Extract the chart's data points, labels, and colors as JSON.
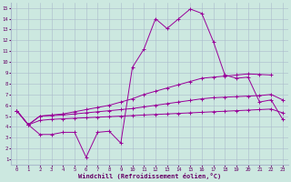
{
  "xlabel": "Windchill (Refroidissement éolien,°C)",
  "xlim": [
    -0.5,
    23.5
  ],
  "ylim": [
    0.5,
    15.5
  ],
  "xticks": [
    0,
    1,
    2,
    3,
    4,
    5,
    6,
    7,
    8,
    9,
    10,
    11,
    12,
    13,
    14,
    15,
    16,
    17,
    18,
    19,
    20,
    21,
    22,
    23
  ],
  "yticks": [
    1,
    2,
    3,
    4,
    5,
    6,
    7,
    8,
    9,
    10,
    11,
    12,
    13,
    14,
    15
  ],
  "bg_color": "#cce8e0",
  "line_color": "#990099",
  "grid_color": "#aabbcc",
  "line_spike_x": [
    0,
    1,
    2,
    3,
    4,
    5,
    6,
    7,
    8,
    9,
    10,
    11,
    12,
    13,
    14,
    15,
    16,
    17,
    18,
    19,
    20,
    21,
    22,
    23
  ],
  "line_spike_y": [
    5.5,
    4.2,
    3.3,
    3.3,
    3.5,
    3.5,
    1.2,
    3.5,
    3.6,
    2.5,
    9.5,
    11.2,
    14.0,
    13.1,
    14.0,
    14.9,
    14.5,
    11.9,
    8.8,
    8.5,
    8.6,
    6.3,
    6.5,
    4.7
  ],
  "line_upper_x": [
    0,
    1,
    2,
    3,
    4,
    5,
    6,
    7,
    8,
    9,
    10,
    11,
    12,
    13,
    14,
    15,
    16,
    17,
    18,
    19,
    20,
    21,
    22,
    23
  ],
  "line_upper_y": [
    5.5,
    4.2,
    5.0,
    5.1,
    5.2,
    5.4,
    5.6,
    5.8,
    6.0,
    6.3,
    6.6,
    7.0,
    7.3,
    7.6,
    7.9,
    8.2,
    8.5,
    8.6,
    8.7,
    8.8,
    8.9,
    8.85,
    8.8,
    null
  ],
  "line_mid_x": [
    0,
    1,
    2,
    3,
    4,
    5,
    6,
    7,
    8,
    9,
    10,
    11,
    12,
    13,
    14,
    15,
    16,
    17,
    18,
    19,
    20,
    21,
    22,
    23
  ],
  "line_mid_y": [
    5.5,
    4.2,
    5.0,
    5.05,
    5.1,
    5.2,
    5.3,
    5.4,
    5.5,
    5.6,
    5.7,
    5.85,
    6.0,
    6.15,
    6.3,
    6.45,
    6.6,
    6.7,
    6.75,
    6.8,
    6.85,
    6.9,
    7.0,
    6.5
  ],
  "line_flat_x": [
    0,
    1,
    2,
    3,
    4,
    5,
    6,
    7,
    8,
    9,
    10,
    11,
    12,
    13,
    14,
    15,
    16,
    17,
    18,
    19,
    20,
    21,
    22,
    23
  ],
  "line_flat_y": [
    5.5,
    4.2,
    4.6,
    4.7,
    4.75,
    4.8,
    4.85,
    4.9,
    4.95,
    5.0,
    5.05,
    5.1,
    5.15,
    5.2,
    5.25,
    5.3,
    5.35,
    5.4,
    5.45,
    5.5,
    5.55,
    5.6,
    5.65,
    5.3
  ]
}
